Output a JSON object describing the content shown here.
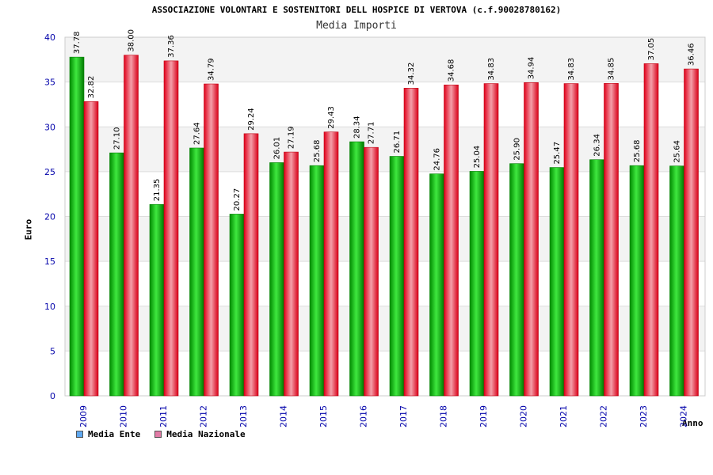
{
  "chart_data": {
    "type": "bar",
    "title": "ASSOCIAZIONE VOLONTARI E SOSTENITORI DELL HOSPICE DI VERTOVA (c.f.90028780162)",
    "subtitle": "Media Importi",
    "xlabel": "Anno",
    "ylabel": "Euro",
    "ylim": [
      0,
      40
    ],
    "yticks": [
      "0",
      "5",
      "10",
      "15",
      "20",
      "25",
      "30",
      "35",
      "40"
    ],
    "categories": [
      "2009",
      "2010",
      "2011",
      "2012",
      "2013",
      "2014",
      "2015",
      "2016",
      "2017",
      "2018",
      "2019",
      "2020",
      "2021",
      "2022",
      "2023",
      "2024"
    ],
    "series": [
      {
        "name": "Media Ente",
        "values": [
          37.78,
          27.1,
          21.35,
          27.64,
          20.27,
          26.01,
          25.68,
          28.34,
          26.71,
          24.76,
          25.04,
          25.9,
          25.47,
          26.34,
          25.68,
          25.64
        ],
        "labels": [
          "37.78",
          "27.10",
          "21.35",
          "27.64",
          "20.27",
          "26.01",
          "25.68",
          "28.34",
          "26.71",
          "24.76",
          "25.04",
          "25.90",
          "25.47",
          "26.34",
          "25.68",
          "25.64"
        ]
      },
      {
        "name": "Media Nazionale",
        "values": [
          32.82,
          38.0,
          37.36,
          34.79,
          29.24,
          27.19,
          29.43,
          27.71,
          34.32,
          34.68,
          34.83,
          34.94,
          34.83,
          34.85,
          37.05,
          36.46
        ],
        "labels": [
          "32.82",
          "38.00",
          "37.36",
          "34.79",
          "29.24",
          "27.19",
          "29.43",
          "27.71",
          "34.32",
          "34.68",
          "34.83",
          "34.94",
          "34.83",
          "34.85",
          "37.05",
          "36.46"
        ]
      }
    ],
    "legend": {
      "position": "bottom-left",
      "items": [
        {
          "label": "Media Ente",
          "color": "#5fa8f0"
        },
        {
          "label": "Media Nazionale",
          "color": "#e27ba6"
        }
      ]
    },
    "colors": {
      "ente_bar": "#00b000",
      "nazionale_bar": "#e8001c",
      "band_light": "#f3f3f3",
      "band_white": "#ffffff",
      "axis_text": "#0000aa"
    },
    "grid": true
  }
}
